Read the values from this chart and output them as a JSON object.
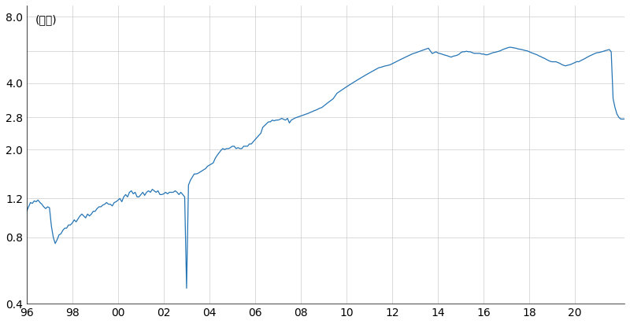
{
  "title_label": "(百万)",
  "line_color": "#2575b5",
  "background_color": "#ffffff",
  "grid_color": "#cccccc",
  "ylim_log": [
    0.4,
    9.0
  ],
  "yticks": [
    0.4,
    0.8,
    1.2,
    2.0,
    2.8,
    4.0,
    5.6,
    8.0
  ],
  "ytick_labels": [
    "0.4",
    "0.8",
    "1.2",
    "2.0",
    "2.8",
    "4.0",
    "",
    "8.0"
  ],
  "n_months": 291,
  "start_year": 1996,
  "xtick_months": [
    0,
    24,
    48,
    72,
    96,
    120,
    144,
    168,
    192,
    216,
    240,
    264,
    288
  ],
  "xtick_labels": [
    "96",
    "98",
    "00",
    "02",
    "04",
    "06",
    "08",
    "10",
    "12",
    "14",
    "16",
    "18",
    "20"
  ],
  "values": [
    1.05,
    1.1,
    1.15,
    1.14,
    1.17,
    1.16,
    1.18,
    1.15,
    1.13,
    1.1,
    1.08,
    1.1,
    1.09,
    0.9,
    0.8,
    0.75,
    0.78,
    0.82,
    0.83,
    0.86,
    0.88,
    0.88,
    0.91,
    0.91,
    0.93,
    0.96,
    0.94,
    0.97,
    1.0,
    1.02,
    1.0,
    0.98,
    1.02,
    1.0,
    1.02,
    1.05,
    1.05,
    1.08,
    1.1,
    1.1,
    1.12,
    1.13,
    1.15,
    1.13,
    1.13,
    1.11,
    1.15,
    1.16,
    1.18,
    1.2,
    1.16,
    1.22,
    1.25,
    1.22,
    1.28,
    1.3,
    1.26,
    1.28,
    1.22,
    1.22,
    1.25,
    1.28,
    1.24,
    1.28,
    1.3,
    1.28,
    1.32,
    1.3,
    1.28,
    1.3,
    1.25,
    1.25,
    1.26,
    1.28,
    1.26,
    1.28,
    1.28,
    1.28,
    1.3,
    1.28,
    1.25,
    1.28,
    1.25,
    1.22,
    0.47,
    1.38,
    1.45,
    1.5,
    1.55,
    1.55,
    1.56,
    1.58,
    1.6,
    1.62,
    1.64,
    1.68,
    1.7,
    1.72,
    1.74,
    1.82,
    1.88,
    1.93,
    1.98,
    2.02,
    2.0,
    2.02,
    2.02,
    2.04,
    2.07,
    2.07,
    2.02,
    2.04,
    2.02,
    2.02,
    2.07,
    2.07,
    2.07,
    2.12,
    2.12,
    2.17,
    2.22,
    2.27,
    2.32,
    2.37,
    2.52,
    2.57,
    2.62,
    2.67,
    2.67,
    2.72,
    2.7,
    2.72,
    2.72,
    2.74,
    2.77,
    2.74,
    2.72,
    2.77,
    2.64,
    2.72,
    2.75,
    2.78,
    2.8,
    2.82,
    2.84,
    2.86,
    2.88,
    2.9,
    2.92,
    2.95,
    2.97,
    3.0,
    3.02,
    3.05,
    3.08,
    3.1,
    3.15,
    3.2,
    3.25,
    3.3,
    3.35,
    3.4,
    3.5,
    3.6,
    3.65,
    3.7,
    3.75,
    3.8,
    3.85,
    3.9,
    3.95,
    4.0,
    4.05,
    4.1,
    4.15,
    4.2,
    4.25,
    4.3,
    4.35,
    4.4,
    4.45,
    4.5,
    4.55,
    4.6,
    4.65,
    4.7,
    4.72,
    4.75,
    4.78,
    4.8,
    4.82,
    4.85,
    4.9,
    4.95,
    5.0,
    5.05,
    5.1,
    5.15,
    5.2,
    5.25,
    5.3,
    5.35,
    5.4,
    5.45,
    5.48,
    5.52,
    5.56,
    5.6,
    5.64,
    5.68,
    5.72,
    5.76,
    5.6,
    5.45,
    5.5,
    5.55,
    5.48,
    5.45,
    5.42,
    5.38,
    5.35,
    5.32,
    5.28,
    5.25,
    5.3,
    5.32,
    5.35,
    5.4,
    5.5,
    5.55,
    5.55,
    5.58,
    5.55,
    5.55,
    5.5,
    5.46,
    5.46,
    5.46,
    5.46,
    5.42,
    5.42,
    5.38,
    5.38,
    5.42,
    5.46,
    5.5,
    5.52,
    5.55,
    5.58,
    5.62,
    5.68,
    5.72,
    5.76,
    5.8,
    5.82,
    5.8,
    5.78,
    5.76,
    5.72,
    5.7,
    5.68,
    5.65,
    5.62,
    5.6,
    5.55,
    5.5,
    5.46,
    5.42,
    5.38,
    5.32,
    5.28,
    5.22,
    5.18,
    5.12,
    5.07,
    5.02,
    5.0,
    5.0,
    5.0,
    4.96,
    4.92,
    4.86,
    4.82,
    4.79,
    4.82,
    4.84,
    4.87,
    4.92,
    4.96,
    5.01,
    5.0,
    5.06,
    5.11,
    5.16,
    5.22,
    5.28,
    5.33,
    5.38,
    5.43,
    5.48,
    5.5,
    5.52,
    5.55,
    5.58,
    5.62,
    5.65,
    5.68,
    5.55,
    3.4,
    3.1,
    2.9,
    2.8,
    2.75,
    2.75,
    2.75
  ]
}
